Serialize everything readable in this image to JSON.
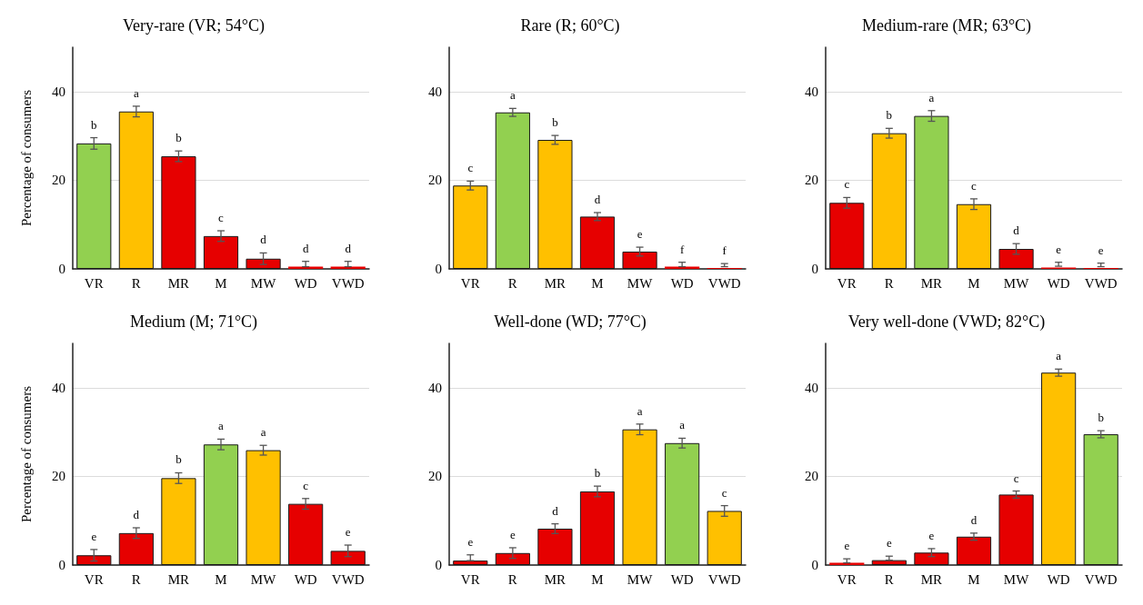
{
  "chart_data": [
    {
      "type": "bar",
      "title": "Very-rare (VR; 54°C)",
      "ylabel": "Percentage of consumers",
      "categories": [
        "VR",
        "R",
        "MR",
        "M",
        "MW",
        "WD",
        "VWD"
      ],
      "values": [
        28.3,
        35.5,
        25.4,
        7.4,
        2.3,
        0.5,
        0.5
      ],
      "colors": [
        "#92d050",
        "#ffc000",
        "#e60000",
        "#e60000",
        "#e60000",
        "#e60000",
        "#e60000"
      ],
      "errors": [
        1.3,
        1.2,
        1.2,
        1.2,
        1.3,
        [
          0.5,
          1.7
        ],
        [
          0.5,
          1.7
        ]
      ],
      "value_labels": [
        "b",
        "a",
        "b",
        "c",
        "d",
        "d",
        "d"
      ],
      "ylim": [
        0,
        50
      ],
      "yticks": [
        0,
        20,
        40
      ],
      "grid": "y"
    },
    {
      "type": "bar",
      "title": "Rare (R; 60°C)",
      "categories": [
        "VR",
        "R",
        "MR",
        "M",
        "MW",
        "WD",
        "VWD"
      ],
      "values": [
        18.8,
        35.3,
        29.1,
        11.8,
        3.9,
        0.5,
        0.2
      ],
      "colors": [
        "#ffc000",
        "#92d050",
        "#ffc000",
        "#e60000",
        "#e60000",
        "#e60000",
        "#e60000"
      ],
      "errors": [
        1,
        0.9,
        1,
        0.9,
        1,
        [
          0.5,
          1.5
        ],
        [
          0.5,
          1.2
        ]
      ],
      "value_labels": [
        "c",
        "a",
        "b",
        "d",
        "e",
        "f",
        "f"
      ],
      "ylim": [
        0,
        50
      ],
      "yticks": [
        0,
        20,
        40
      ],
      "grid": "y"
    },
    {
      "type": "bar",
      "title": "Medium-rare (MR; 63°C)",
      "categories": [
        "VR",
        "R",
        "MR",
        "M",
        "MW",
        "WD",
        "VWD"
      ],
      "values": [
        14.9,
        30.6,
        34.5,
        14.6,
        4.5,
        0.3,
        0.2
      ],
      "colors": [
        "#e60000",
        "#ffc000",
        "#92d050",
        "#ffc000",
        "#e60000",
        "#e60000",
        "#e60000"
      ],
      "errors": [
        1.2,
        1.1,
        1.2,
        1.2,
        1.2,
        [
          0.6,
          1.5
        ],
        [
          0.5,
          1.3
        ]
      ],
      "value_labels": [
        "c",
        "b",
        "a",
        "c",
        "d",
        "e",
        "e"
      ],
      "ylim": [
        0,
        50
      ],
      "yticks": [
        0,
        20,
        40
      ],
      "grid": "y"
    },
    {
      "type": "bar",
      "title": "Medium (M; 71°C)",
      "ylabel": "Percentage of consumers",
      "categories": [
        "VR",
        "R",
        "MR",
        "M",
        "MW",
        "WD",
        "VWD"
      ],
      "values": [
        2.2,
        7.2,
        19.6,
        27.2,
        25.9,
        13.8,
        3.2
      ],
      "colors": [
        "#e60000",
        "#e60000",
        "#ffc000",
        "#92d050",
        "#ffc000",
        "#e60000",
        "#e60000"
      ],
      "errors": [
        1.3,
        1.2,
        1.2,
        1.2,
        1.1,
        1.2,
        1.3
      ],
      "value_labels": [
        "e",
        "d",
        "b",
        "a",
        "a",
        "c",
        "e"
      ],
      "ylim": [
        0,
        50
      ],
      "yticks": [
        0,
        20,
        40
      ],
      "grid": "y"
    },
    {
      "type": "bar",
      "title": "Well-done (WD; 77°C)",
      "categories": [
        "VR",
        "R",
        "MR",
        "M",
        "MW",
        "WD",
        "VWD"
      ],
      "values": [
        1.0,
        2.7,
        8.2,
        16.6,
        30.6,
        27.5,
        12.2
      ],
      "colors": [
        "#e60000",
        "#e60000",
        "#e60000",
        "#e60000",
        "#ffc000",
        "#92d050",
        "#ffc000"
      ],
      "errors": [
        [
          1.0,
          2.3
        ],
        1.2,
        1.1,
        1.2,
        1.2,
        1.1,
        1.2
      ],
      "value_labels": [
        "e",
        "e",
        "d",
        "b",
        "a",
        "a",
        "c"
      ],
      "ylim": [
        0,
        50
      ],
      "yticks": [
        0,
        20,
        40
      ],
      "grid": "y"
    },
    {
      "type": "bar",
      "title": "Very well-done (VWD; 82°C)",
      "categories": [
        "VR",
        "R",
        "MR",
        "M",
        "MW",
        "WD",
        "VWD"
      ],
      "values": [
        0.5,
        1.1,
        2.8,
        6.4,
        15.9,
        43.4,
        29.5
      ],
      "colors": [
        "#e60000",
        "#e60000",
        "#e60000",
        "#e60000",
        "#e60000",
        "#ffc000",
        "#92d050"
      ],
      "errors": [
        [
          0.5,
          1.4
        ],
        [
          1.1,
          2.0
        ],
        0.9,
        0.8,
        0.8,
        0.8,
        0.8
      ],
      "value_labels": [
        "e",
        "e",
        "e",
        "d",
        "c",
        "a",
        "b"
      ],
      "ylim": [
        0,
        50
      ],
      "yticks": [
        0,
        20,
        40
      ],
      "grid": "y"
    }
  ]
}
